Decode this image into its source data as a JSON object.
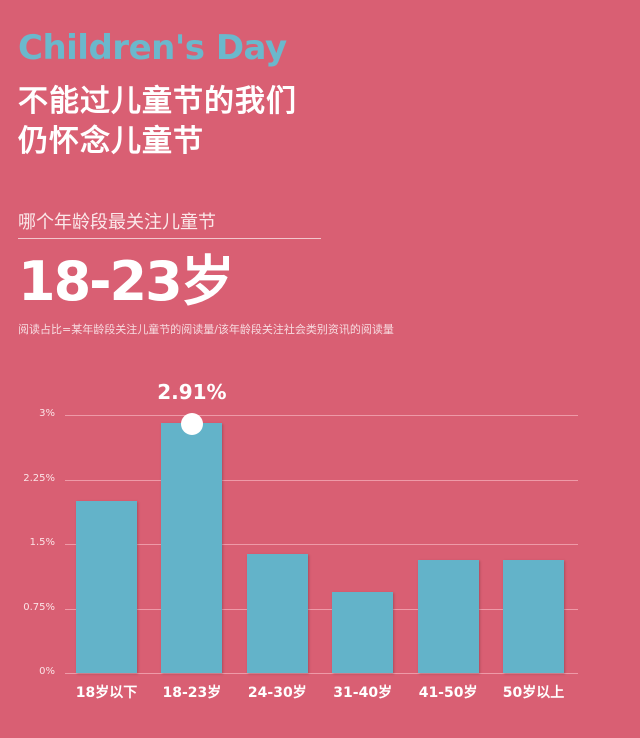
{
  "header": {
    "english_title": "Children's Day",
    "chinese_title_line1": "不能过儿童节的我们",
    "chinese_title_line2": "仍怀念儿童节"
  },
  "section": {
    "question": "哪个年龄段最关注儿童节",
    "answer": "18-23岁",
    "note": "阅读占比=某年龄段关注儿童节的阅读量/该年龄段关注社会类别资讯的阅读量"
  },
  "colors": {
    "background": "#d95f73",
    "bar": "#63b3c9",
    "english_title": "#6bb8cc",
    "text": "#ffffff"
  },
  "chart_data": {
    "type": "bar",
    "title": "哪个年龄段最关注儿童节",
    "categories": [
      "18岁以下",
      "18-23岁",
      "24-30岁",
      "31-40岁",
      "41-50岁",
      "50岁以上"
    ],
    "values": [
      2.0,
      2.91,
      1.38,
      0.94,
      1.31,
      1.31
    ],
    "unit": "%",
    "xlabel": "",
    "ylabel": "",
    "ylim": [
      0,
      3
    ],
    "yticks": [
      "0%",
      "0.75%",
      "1.5%",
      "2.25%",
      "3%"
    ],
    "grid": true,
    "legend": "none",
    "annotations": [
      {
        "category": "18-23岁",
        "label": "2.91%",
        "marker": "white-dot"
      }
    ]
  }
}
